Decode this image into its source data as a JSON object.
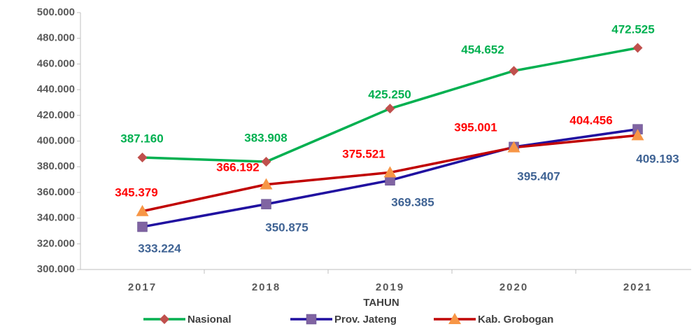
{
  "chart_data": {
    "type": "line",
    "x_label": "TAHUN",
    "categories": [
      "2017",
      "2018",
      "2019",
      "2020",
      "2021"
    ],
    "ylim": [
      300000,
      500000
    ],
    "yticks": [
      {
        "value": 300000,
        "label": "300.000"
      },
      {
        "value": 320000,
        "label": "320.000"
      },
      {
        "value": 340000,
        "label": "340.000"
      },
      {
        "value": 360000,
        "label": "360.000"
      },
      {
        "value": 380000,
        "label": "380.000"
      },
      {
        "value": 400000,
        "label": "400.000"
      },
      {
        "value": 420000,
        "label": "420.000"
      },
      {
        "value": 440000,
        "label": "440.000"
      },
      {
        "value": 460000,
        "label": "460.000"
      },
      {
        "value": 480000,
        "label": "480.000"
      },
      {
        "value": 500000,
        "label": "500.000"
      }
    ],
    "grid": false,
    "legend": "bottom",
    "series": [
      {
        "name": "Nasional",
        "color": "#00b050",
        "marker": "diamond",
        "marker_color": "#c0504d",
        "label_color": "#00b050",
        "values": [
          387160,
          383908,
          425250,
          454652,
          472525
        ],
        "value_labels": [
          "387.160",
          "383.908",
          "425.250",
          "454.652",
          "472.525"
        ]
      },
      {
        "name": "Prov. Jateng",
        "color": "#2010a0",
        "marker": "square",
        "marker_color": "#8064a2",
        "label_color": "#3f6394",
        "values": [
          333224,
          350875,
          369385,
          395407,
          409193
        ],
        "value_labels": [
          "333.224",
          "350.875",
          "369.385",
          "395.407",
          "409.193"
        ]
      },
      {
        "name": "Kab. Grobogan",
        "color": "#c00000",
        "marker": "triangle",
        "marker_color": "#f79646",
        "label_color": "#ff0000",
        "values": [
          345379,
          366192,
          375521,
          395001,
          404456
        ],
        "value_labels": [
          "345.379",
          "366.192",
          "375.521",
          "395.001",
          "404.456"
        ]
      }
    ]
  }
}
